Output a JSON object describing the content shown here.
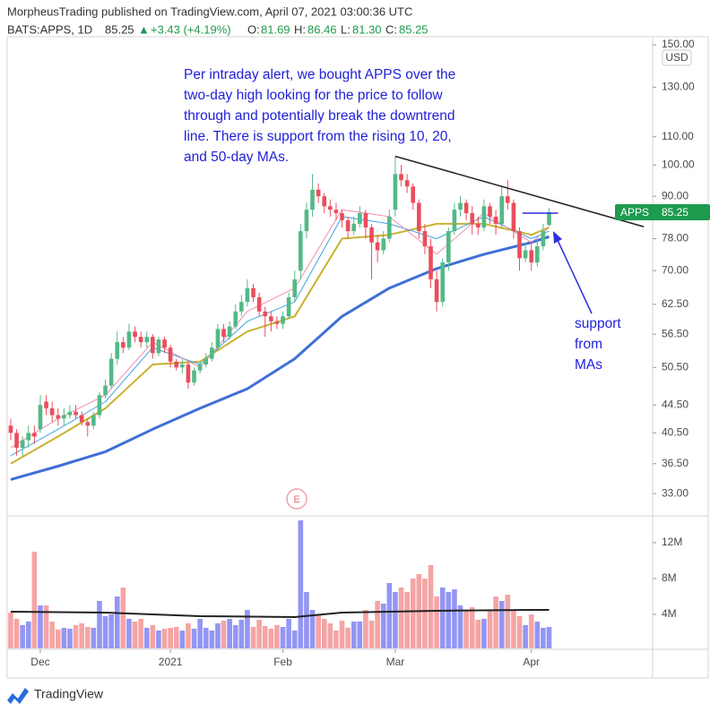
{
  "header": {
    "title": "MorpheusTrading published on TradingView.com, April 07, 2021 03:00:36 UTC",
    "symbol": "BATS:APPS, 1D",
    "last": "85.25",
    "change_arrow": "▲",
    "change": "+3.43 (+4.19%)",
    "o_label": "O:",
    "o": "81.69",
    "h_label": "H:",
    "h": "86.46",
    "l_label": "L:",
    "l": "81.30",
    "c_label": "C:",
    "c": "85.25"
  },
  "chart_data": {
    "type": "candlestick",
    "up_color": "#53b987",
    "down_color": "#eb4d5c",
    "open": [
      41.5,
      40.5,
      38.5,
      39.5,
      40.5,
      41,
      45,
      44,
      43,
      42.5,
      43,
      43.5,
      43,
      42,
      41.5,
      43,
      46,
      47.5,
      52,
      55,
      54,
      57,
      56,
      55,
      56,
      53,
      55.5,
      54,
      51.5,
      50.5,
      51,
      48,
      50,
      51,
      52,
      54,
      57.5,
      56,
      58,
      61,
      63,
      66,
      64,
      61,
      60,
      59,
      58.5,
      60,
      64,
      70,
      80,
      86,
      92,
      90,
      87,
      86,
      85,
      83,
      80,
      82,
      85,
      81,
      77,
      75,
      78,
      86,
      97,
      95,
      93,
      88,
      80,
      76,
      68,
      63,
      72,
      80,
      86,
      88,
      85,
      82,
      81,
      87,
      84,
      82,
      90,
      88,
      80,
      73,
      75,
      72,
      76,
      81.69
    ],
    "high": [
      42.5,
      41,
      40,
      41.5,
      41.5,
      46,
      46,
      45,
      44,
      44,
      44.5,
      44.5,
      43.5,
      42.5,
      43.5,
      46.5,
      48.5,
      53,
      57,
      56,
      58.5,
      58,
      57,
      57,
      56.5,
      56,
      56,
      54.5,
      52,
      52,
      51.5,
      50.5,
      51.5,
      53,
      55,
      58.5,
      58.5,
      59,
      62.5,
      64.5,
      68,
      67,
      65,
      62,
      61,
      60,
      61,
      65,
      70,
      82,
      88,
      97,
      94,
      91,
      89,
      88,
      86,
      84,
      84,
      87,
      86,
      82,
      79,
      80,
      86,
      103,
      100,
      97,
      94,
      89,
      82,
      78,
      70,
      73,
      81,
      88,
      90,
      89,
      87,
      84,
      89,
      88,
      86,
      93,
      95,
      89,
      81,
      77,
      77,
      78,
      82,
      86.46
    ],
    "low": [
      39.5,
      37.5,
      37.5,
      38.5,
      39,
      40.5,
      43,
      42,
      41.5,
      41.5,
      42.5,
      42.5,
      41.5,
      40,
      41,
      42.5,
      45.5,
      47,
      51,
      53,
      53.5,
      55,
      54,
      54,
      52,
      52.5,
      53,
      50.5,
      50,
      49.5,
      47,
      47.5,
      49.5,
      50.5,
      51.5,
      53.5,
      55,
      55.5,
      57.5,
      60,
      62,
      63,
      60,
      56,
      57,
      57.5,
      57.5,
      59.5,
      63,
      68,
      78,
      84,
      88,
      85,
      84,
      83,
      81,
      78,
      79,
      81,
      78,
      68,
      72,
      74,
      77,
      84,
      93,
      91,
      86,
      78,
      74,
      66,
      61,
      62,
      70,
      79,
      84,
      83,
      79,
      79,
      80,
      82,
      79,
      81,
      86,
      78,
      70,
      72,
      70,
      71,
      75,
      81.3
    ],
    "close": [
      40.5,
      38.5,
      39.5,
      40.5,
      40,
      44.5,
      44,
      43,
      42.5,
      43,
      43.5,
      43,
      42,
      41.5,
      43,
      46,
      47.5,
      52,
      55,
      54,
      57,
      56,
      55,
      56,
      53,
      55.5,
      54,
      51.5,
      50.5,
      51,
      48,
      50,
      51,
      52,
      54,
      57.5,
      56,
      58,
      61,
      63,
      66,
      64,
      61,
      60,
      59,
      58.5,
      60,
      64,
      68,
      80,
      86,
      92,
      90,
      87,
      86,
      85,
      83,
      80,
      82,
      85,
      81,
      77,
      75,
      78,
      84,
      97,
      95,
      93,
      88,
      80,
      76,
      68,
      63,
      72,
      80,
      86,
      88,
      85,
      82,
      81,
      87,
      84,
      82,
      90,
      88,
      80,
      73,
      75,
      72,
      76,
      80,
      85.25
    ],
    "xlim": [
      -0.6,
      108.5
    ],
    "xticks": [
      {
        "value": 5,
        "label": "Dec"
      },
      {
        "value": 27,
        "label": "2021"
      },
      {
        "value": 46,
        "label": "Feb"
      },
      {
        "value": 65,
        "label": "Mar"
      },
      {
        "value": 88,
        "label": "Apr"
      }
    ],
    "ylim": [
      30.7,
      153.7
    ],
    "log_scale": true,
    "grid": false,
    "yticks": [
      {
        "value": 150,
        "label": "150.00"
      },
      {
        "value": 130,
        "label": "130.00"
      },
      {
        "value": 110,
        "label": "110.00"
      },
      {
        "value": 100,
        "label": "100.00"
      },
      {
        "value": 90,
        "label": "90.00"
      },
      {
        "value": 78,
        "label": "78.00"
      },
      {
        "value": 70,
        "label": "70.00"
      },
      {
        "value": 62.5,
        "label": "62.50"
      },
      {
        "value": 56.5,
        "label": "56.50"
      },
      {
        "value": 50.5,
        "label": "50.50"
      },
      {
        "value": 44.5,
        "label": "44.50"
      },
      {
        "value": 40.5,
        "label": "40.50"
      },
      {
        "value": 36.5,
        "label": "36.50"
      },
      {
        "value": 33,
        "label": "33.00"
      }
    ],
    "currency": "USD",
    "price_label": {
      "text": "APPS",
      "value": 85.25,
      "label": "85.25",
      "color": "#1e9b4e"
    },
    "moving_averages": [
      {
        "color": "#3f6fd6",
        "width": 3,
        "x": [
          0,
          8,
          16,
          24,
          32,
          40,
          48,
          56,
          64,
          72,
          80,
          88,
          91
        ],
        "values": [
          34.6,
          36.2,
          38,
          41,
          44,
          47,
          52,
          60,
          66,
          70.5,
          74,
          77,
          78.5
        ]
      },
      {
        "color": "#c9b22e",
        "width": 2,
        "x": [
          0,
          8,
          16,
          24,
          32,
          40,
          48,
          56,
          64,
          72,
          80,
          88,
          91
        ],
        "values": [
          36.5,
          40,
          44,
          51,
          51.5,
          57,
          60,
          78,
          79,
          82,
          82,
          79,
          81
        ]
      },
      {
        "color": "#3da6e0",
        "width": 1,
        "x": [
          0,
          8,
          16,
          24,
          32,
          40,
          48,
          56,
          64,
          72,
          80,
          88,
          91
        ],
        "values": [
          37.5,
          41,
          45,
          54,
          51,
          59,
          63,
          84,
          82,
          78,
          84,
          78,
          80
        ]
      },
      {
        "color": "#ef8fb0",
        "width": 1,
        "x": [
          0,
          8,
          16,
          24,
          32,
          40,
          48,
          56,
          64,
          72,
          80,
          88,
          91
        ],
        "values": [
          38.5,
          42.5,
          46,
          55,
          50.5,
          61,
          66,
          86,
          84,
          74,
          85,
          77,
          81
        ]
      }
    ],
    "trendline": {
      "color": "#222",
      "x": [
        65,
        107
      ],
      "values": [
        103,
        81.2
      ]
    },
    "level_line": {
      "color": "#2d2de0",
      "x": [
        86.5,
        92.5
      ],
      "values": [
        85,
        85
      ]
    },
    "annotations": [
      {
        "lines": [
          "Per intraday alert, we bought APPS over the",
          "two-day high looking for the price to follow",
          "through and potentially break the downtrend",
          "line.  There is support from the rising 10, 20,",
          "and 50-day MAs."
        ]
      },
      {
        "lines": [
          "support",
          "from",
          "MAs"
        ]
      }
    ],
    "earnings_marker": "E",
    "volume": {
      "up_color": "#9396f3",
      "down_color": "#f5a4a4",
      "values": [
        4200000,
        3500000,
        2800000,
        3200000,
        11000000,
        5000000,
        5000000,
        3200000,
        2300000,
        2500000,
        2400000,
        2800000,
        3000000,
        2600000,
        2500000,
        5500000,
        3800000,
        4000000,
        6000000,
        7000000,
        3500000,
        3200000,
        3500000,
        2500000,
        2800000,
        2200000,
        2400000,
        2500000,
        2600000,
        2200000,
        3000000,
        2400000,
        3500000,
        2500000,
        2200000,
        3000000,
        3300000,
        3500000,
        2800000,
        3400000,
        4500000,
        2600000,
        3400000,
        2700000,
        2400000,
        2800000,
        2600000,
        3500000,
        2200000,
        14500000,
        6500000,
        4500000,
        4000000,
        3500000,
        3000000,
        2200000,
        3300000,
        2500000,
        3200000,
        3200000,
        4500000,
        3300000,
        5500000,
        5200000,
        7500000,
        6500000,
        7000000,
        6500000,
        8000000,
        8500000,
        8000000,
        9500000,
        6000000,
        7000000,
        6500000,
        6800000,
        5000000,
        4500000,
        4800000,
        3400000,
        3500000,
        4500000,
        6000000,
        5500000,
        6200000,
        4500000,
        3800000,
        2800000,
        4000000,
        3200000,
        2500000,
        2600000
      ],
      "ylim": [
        200000,
        14800000
      ],
      "yticks": [
        {
          "value": 12000000,
          "label": "12M"
        },
        {
          "value": 8000000,
          "label": "8M"
        },
        {
          "value": 4000000,
          "label": "4M"
        }
      ],
      "ma": {
        "color": "#222",
        "x": [
          0,
          16,
          32,
          48,
          56,
          72,
          88,
          91
        ],
        "values": [
          4300000,
          4200000,
          3800000,
          3700000,
          4200000,
          4400000,
          4500000,
          4500000
        ]
      }
    }
  },
  "footer": "TradingView"
}
